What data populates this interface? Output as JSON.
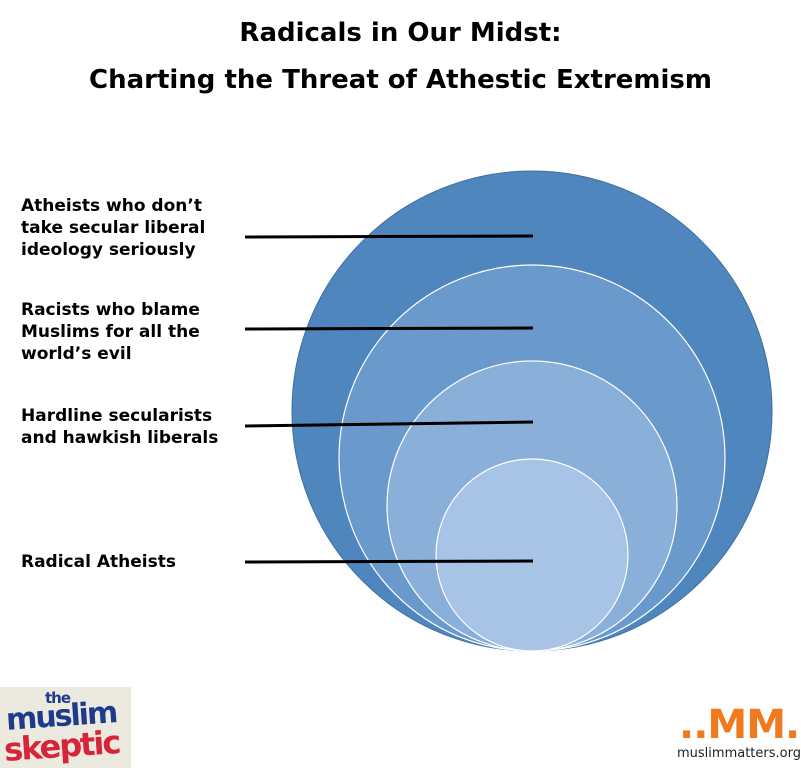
{
  "title": {
    "line1": "Radicals in Our Midst:",
    "line2": "Charting the Threat of Athestic Extremism"
  },
  "diagram": {
    "type": "nested-circles",
    "levels": [
      {
        "label": "Atheists who don’t\ntake secular liberal\nideology seriously",
        "fill": "#4f86be"
      },
      {
        "label": "Racists who blame\nMuslims for all the\nworld’s evil",
        "fill": "#6a9acb"
      },
      {
        "label": "Hardline secularists\nand hawkish liberals",
        "fill": "#8aafd8"
      },
      {
        "label": "Radical Atheists",
        "fill": "#a7c3e5"
      }
    ],
    "outline_color": "#3e6f9f",
    "leader_line_color": "#000000"
  },
  "logos": {
    "left": {
      "the": "the",
      "muslim": "muslim",
      "skeptic": "skeptic"
    },
    "right": {
      "mark": "..MM.",
      "site": "muslimmatters.org"
    }
  }
}
